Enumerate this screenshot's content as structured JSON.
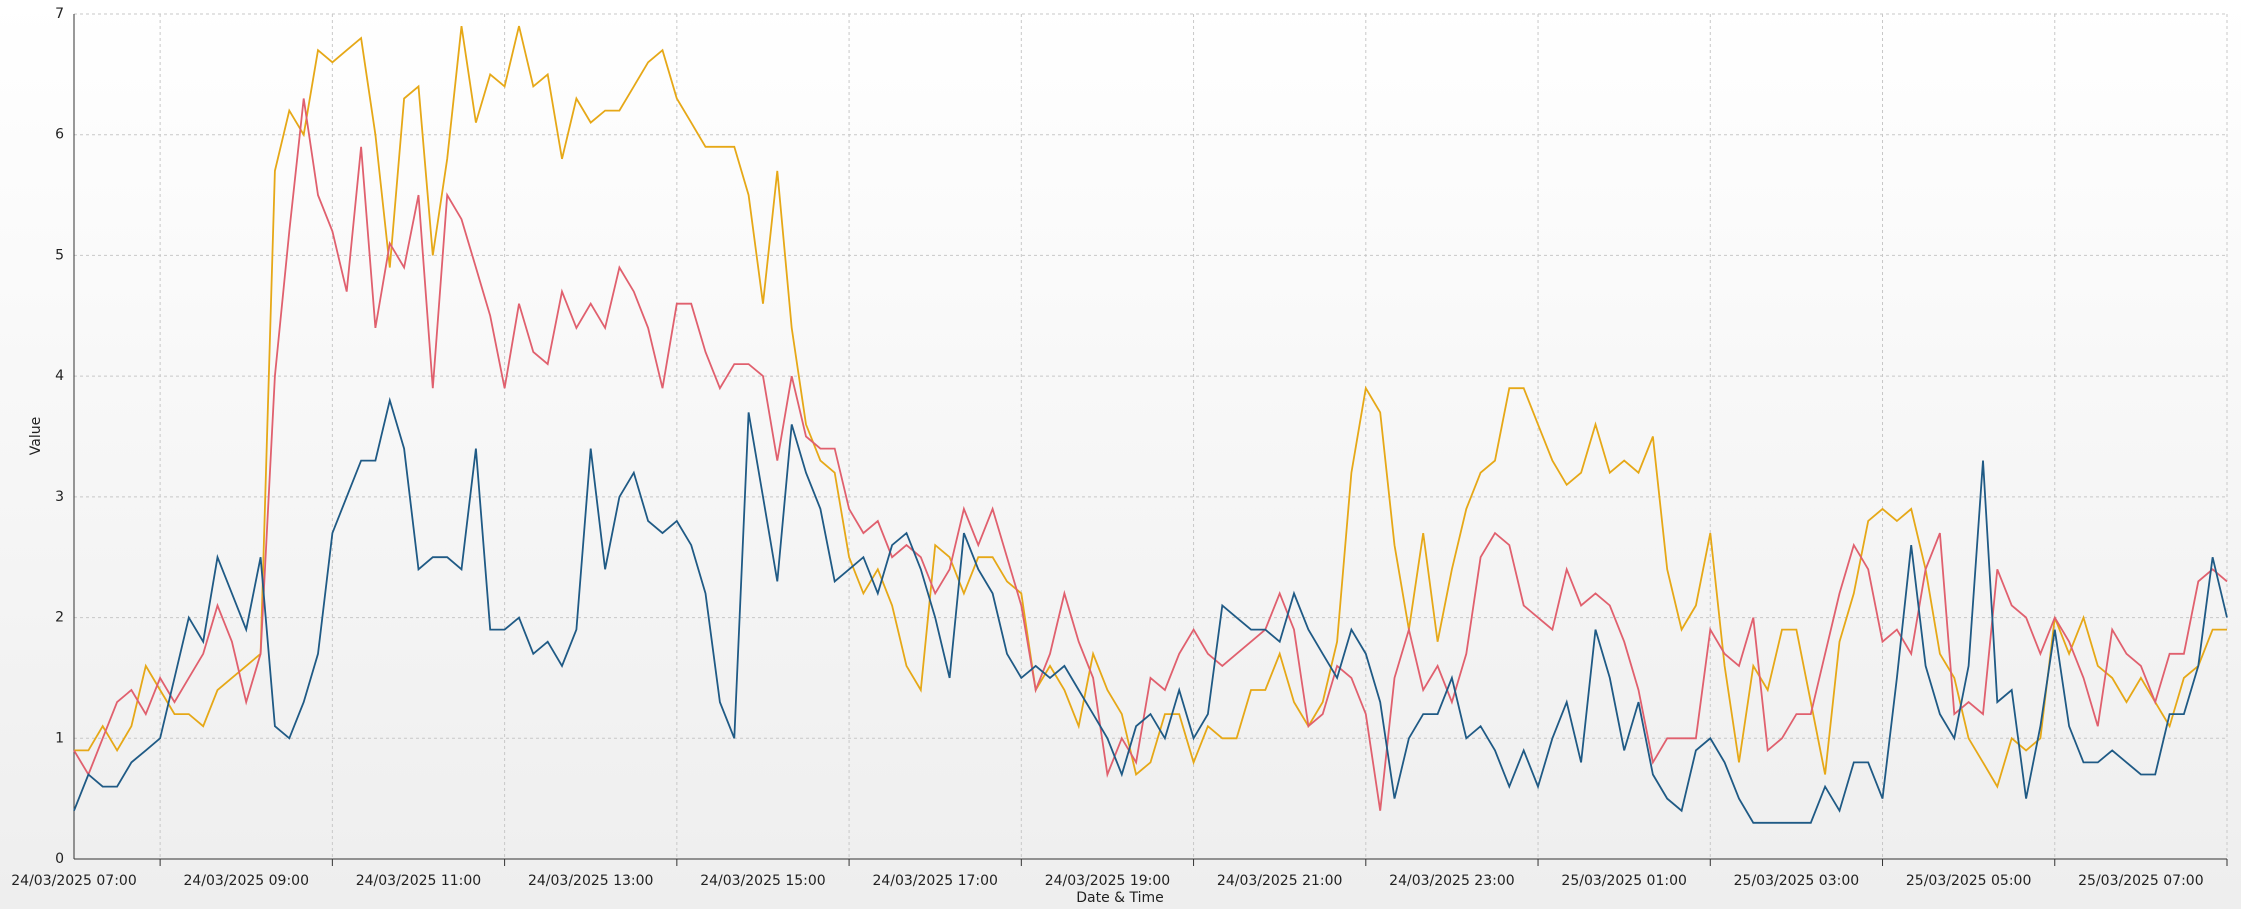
{
  "chart_data": {
    "type": "line",
    "x_label": "Date & Time",
    "y_label": "Value",
    "categories": [
      "24/03/2025 07:00",
      null,
      null,
      null,
      null,
      null,
      null,
      null,
      null,
      null,
      null,
      null,
      "24/03/2025 09:00",
      null,
      null,
      null,
      null,
      null,
      null,
      null,
      null,
      null,
      null,
      null,
      "24/03/2025 11:00",
      null,
      null,
      null,
      null,
      null,
      null,
      null,
      null,
      null,
      null,
      null,
      "24/03/2025 13:00",
      null,
      null,
      null,
      null,
      null,
      null,
      null,
      null,
      null,
      null,
      null,
      "24/03/2025 15:00",
      null,
      null,
      null,
      null,
      null,
      null,
      null,
      null,
      null,
      null,
      null,
      "24/03/2025 17:00",
      null,
      null,
      null,
      null,
      null,
      null,
      null,
      null,
      null,
      null,
      null,
      "24/03/2025 19:00",
      null,
      null,
      null,
      null,
      null,
      null,
      null,
      null,
      null,
      null,
      null,
      "24/03/2025 21:00",
      null,
      null,
      null,
      null,
      null,
      null,
      null,
      null,
      null,
      null,
      null,
      "24/03/2025 23:00",
      null,
      null,
      null,
      null,
      null,
      null,
      null,
      null,
      null,
      null,
      null,
      "25/03/2025 01:00",
      null,
      null,
      null,
      null,
      null,
      null,
      null,
      null,
      null,
      null,
      null,
      "25/03/2025 03:00",
      null,
      null,
      null,
      null,
      null,
      null,
      null,
      null,
      null,
      null,
      null,
      "25/03/2025 05:00",
      null,
      null,
      null,
      null,
      null,
      null,
      null,
      null,
      null,
      null,
      null,
      "25/03/2025 07:00",
      null,
      null,
      null,
      null,
      null,
      null
    ],
    "series": [
      {
        "color": "#e6a817",
        "values": [
          0.9,
          0.9,
          1.1,
          0.9,
          1.1,
          1.6,
          1.4,
          1.2,
          1.2,
          1.1,
          1.4,
          1.5,
          1.6,
          1.7,
          5.7,
          6.2,
          6.0,
          6.7,
          6.6,
          6.7,
          6.8,
          6.0,
          4.9,
          6.3,
          6.4,
          5.0,
          5.8,
          6.9,
          6.1,
          6.5,
          6.4,
          6.9,
          6.4,
          6.5,
          5.8,
          6.3,
          6.1,
          6.2,
          6.2,
          6.4,
          6.6,
          6.7,
          6.3,
          6.1,
          5.9,
          5.9,
          5.9,
          5.5,
          4.6,
          5.7,
          4.4,
          3.6,
          3.3,
          3.2,
          2.5,
          2.2,
          2.4,
          2.1,
          1.6,
          1.4,
          2.6,
          2.5,
          2.2,
          2.5,
          2.5,
          2.3,
          2.2,
          1.4,
          1.6,
          1.4,
          1.1,
          1.7,
          1.4,
          1.2,
          0.7,
          0.8,
          1.2,
          1.2,
          0.8,
          1.1,
          1.0,
          1.0,
          1.4,
          1.4,
          1.7,
          1.3,
          1.1,
          1.3,
          1.8,
          3.2,
          3.9,
          3.7,
          2.6,
          1.9,
          2.7,
          1.8,
          2.4,
          2.9,
          3.2,
          3.3,
          3.9,
          3.9,
          3.6,
          3.3,
          3.1,
          3.2,
          3.6,
          3.2,
          3.3,
          3.2,
          3.5,
          2.4,
          1.9,
          2.1,
          2.7,
          1.6,
          0.8,
          1.6,
          1.4,
          1.9,
          1.9,
          1.3,
          0.7,
          1.8,
          2.2,
          2.8,
          2.9,
          2.8,
          2.9,
          2.4,
          1.7,
          1.5,
          1.0,
          0.8,
          0.6,
          1.0,
          0.9,
          1.0,
          2.0,
          1.7,
          2.0,
          1.6,
          1.5,
          1.3,
          1.5,
          1.3,
          1.1,
          1.5,
          1.6,
          1.9,
          1.9
        ]
      },
      {
        "color": "#e0606e",
        "values": [
          0.9,
          0.7,
          1.0,
          1.3,
          1.4,
          1.2,
          1.5,
          1.3,
          1.5,
          1.7,
          2.1,
          1.8,
          1.3,
          1.7,
          4.0,
          5.2,
          6.3,
          5.5,
          5.2,
          4.7,
          5.9,
          4.4,
          5.1,
          4.9,
          5.5,
          3.9,
          5.5,
          5.3,
          4.9,
          4.5,
          3.9,
          4.6,
          4.2,
          4.1,
          4.7,
          4.4,
          4.6,
          4.4,
          4.9,
          4.7,
          4.4,
          3.9,
          4.6,
          4.6,
          4.2,
          3.9,
          4.1,
          4.1,
          4.0,
          3.3,
          4.0,
          3.5,
          3.4,
          3.4,
          2.9,
          2.7,
          2.8,
          2.5,
          2.6,
          2.5,
          2.2,
          2.4,
          2.9,
          2.6,
          2.9,
          2.5,
          2.1,
          1.4,
          1.7,
          2.2,
          1.8,
          1.5,
          0.7,
          1.0,
          0.8,
          1.5,
          1.4,
          1.7,
          1.9,
          1.7,
          1.6,
          1.7,
          1.8,
          1.9,
          2.2,
          1.9,
          1.1,
          1.2,
          1.6,
          1.5,
          1.2,
          0.4,
          1.5,
          1.9,
          1.4,
          1.6,
          1.3,
          1.7,
          2.5,
          2.7,
          2.6,
          2.1,
          2.0,
          1.9,
          2.4,
          2.1,
          2.2,
          2.1,
          1.8,
          1.4,
          0.8,
          1.0,
          1.0,
          1.0,
          1.9,
          1.7,
          1.6,
          2.0,
          0.9,
          1.0,
          1.2,
          1.2,
          1.7,
          2.2,
          2.6,
          2.4,
          1.8,
          1.9,
          1.7,
          2.4,
          2.7,
          1.2,
          1.3,
          1.2,
          2.4,
          2.1,
          2.0,
          1.7,
          2.0,
          1.8,
          1.5,
          1.1,
          1.9,
          1.7,
          1.6,
          1.3,
          1.7,
          1.7,
          2.3,
          2.4,
          2.3
        ]
      },
      {
        "color": "#1f5a85",
        "values": [
          0.4,
          0.7,
          0.6,
          0.6,
          0.8,
          0.9,
          1.0,
          1.5,
          2.0,
          1.8,
          2.5,
          2.2,
          1.9,
          2.5,
          1.1,
          1.0,
          1.3,
          1.7,
          2.7,
          3.0,
          3.3,
          3.3,
          3.8,
          3.4,
          2.4,
          2.5,
          2.5,
          2.4,
          3.4,
          1.9,
          1.9,
          2.0,
          1.7,
          1.8,
          1.6,
          1.9,
          3.4,
          2.4,
          3.0,
          3.2,
          2.8,
          2.7,
          2.8,
          2.6,
          2.2,
          1.3,
          1.0,
          3.7,
          3.0,
          2.3,
          3.6,
          3.2,
          2.9,
          2.3,
          2.4,
          2.5,
          2.2,
          2.6,
          2.7,
          2.4,
          2.0,
          1.5,
          2.7,
          2.4,
          2.2,
          1.7,
          1.5,
          1.6,
          1.5,
          1.6,
          1.4,
          1.2,
          1.0,
          0.7,
          1.1,
          1.2,
          1.0,
          1.4,
          1.0,
          1.2,
          2.1,
          2.0,
          1.9,
          1.9,
          1.8,
          2.2,
          1.9,
          1.7,
          1.5,
          1.9,
          1.7,
          1.3,
          0.5,
          1.0,
          1.2,
          1.2,
          1.5,
          1.0,
          1.1,
          0.9,
          0.6,
          0.9,
          0.6,
          1.0,
          1.3,
          0.8,
          1.9,
          1.5,
          0.9,
          1.3,
          0.7,
          0.5,
          0.4,
          0.9,
          1.0,
          0.8,
          0.5,
          0.3,
          0.3,
          0.3,
          0.3,
          0.3,
          0.6,
          0.4,
          0.8,
          0.8,
          0.5,
          1.5,
          2.6,
          1.6,
          1.2,
          1.0,
          1.6,
          3.3,
          1.3,
          1.4,
          0.5,
          1.1,
          1.9,
          1.1,
          0.8,
          0.8,
          0.9,
          0.8,
          0.7,
          0.7,
          1.2,
          1.2,
          1.6,
          2.5,
          2.0
        ]
      }
    ],
    "ylim": [
      0,
      7
    ],
    "yticks": [
      0,
      1,
      2,
      3,
      4,
      5,
      6,
      7
    ],
    "grid": true
  }
}
